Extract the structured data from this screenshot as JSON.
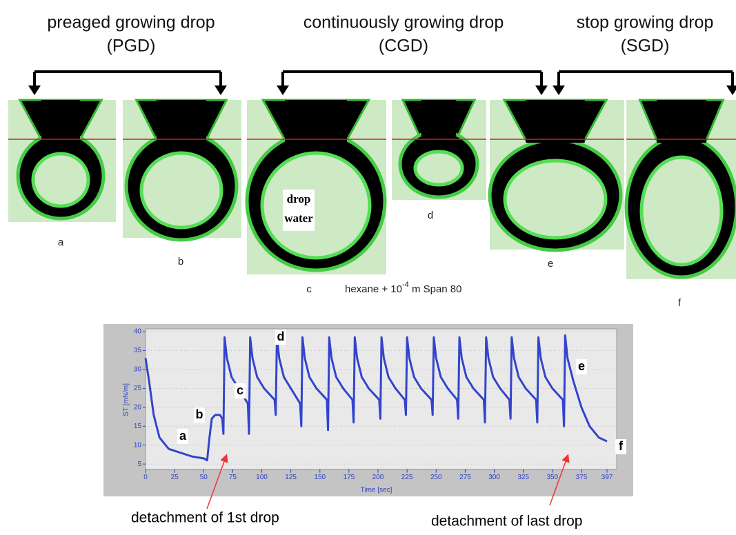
{
  "headers": [
    {
      "title": "preaged growing drop",
      "subtitle": "(PGD)"
    },
    {
      "title": "continuously growing drop",
      "subtitle": "(CGD)"
    },
    {
      "title": "stop growing drop",
      "subtitle": "(SGD)"
    }
  ],
  "drops": [
    {
      "label": "a"
    },
    {
      "label": "b"
    },
    {
      "label": "c"
    },
    {
      "label": "d"
    },
    {
      "label": "e"
    },
    {
      "label": "f"
    }
  ],
  "drop_text": [
    "drop",
    "water"
  ],
  "caption": {
    "before": "hexane + 10",
    "sup": "-4",
    "after": " m Span 80"
  },
  "chart_data": {
    "type": "line",
    "x_label": "Time [sec]",
    "y_label": "ST [mN/m]",
    "x": [
      0,
      3,
      7,
      12,
      20,
      30,
      40,
      50,
      53,
      55,
      57,
      60,
      64,
      66,
      67,
      68,
      70,
      74,
      80,
      88,
      89,
      90,
      92,
      96,
      102,
      111,
      112,
      113,
      115,
      119,
      125,
      133,
      134,
      135,
      137,
      141,
      147,
      156,
      157,
      158,
      160,
      164,
      170,
      178,
      179,
      180,
      182,
      186,
      192,
      201,
      202,
      203,
      205,
      209,
      215,
      223,
      224,
      225,
      227,
      231,
      237,
      246,
      247,
      248,
      250,
      254,
      260,
      268,
      269,
      270,
      272,
      276,
      282,
      291,
      292,
      293,
      295,
      299,
      305,
      313,
      314,
      315,
      317,
      321,
      327,
      336,
      337,
      338,
      340,
      344,
      350,
      359,
      360,
      361,
      363,
      368,
      375,
      382,
      390,
      397
    ],
    "series": [
      {
        "color": "#3344cc",
        "values": [
          33,
          27,
          18,
          12,
          9,
          8,
          7,
          6.5,
          6,
          12,
          17,
          18,
          18,
          17,
          13,
          38.5,
          33,
          28,
          25,
          21,
          13,
          38.5,
          33,
          28,
          25,
          22,
          18,
          38.5,
          33,
          28,
          25,
          21,
          15,
          38.5,
          33,
          28,
          25,
          22,
          14,
          38.5,
          33,
          28,
          25,
          22,
          16,
          38.5,
          33,
          28,
          25,
          22,
          17,
          38.5,
          33,
          28,
          25,
          22,
          18,
          38.5,
          33,
          28,
          25,
          22,
          18,
          38.5,
          33,
          28,
          25,
          22,
          17,
          38.5,
          33,
          28,
          25,
          22,
          16,
          38.5,
          33,
          28,
          25,
          22,
          17,
          38.5,
          33,
          28,
          25,
          22,
          16,
          38.5,
          33,
          28,
          25,
          22,
          15,
          39,
          33,
          27,
          20,
          15,
          12,
          11
        ]
      }
    ],
    "xlim": [
      0,
      397
    ],
    "ylim": [
      4,
      40
    ],
    "xticks": [
      0,
      25,
      50,
      75,
      100,
      125,
      150,
      175,
      200,
      225,
      250,
      275,
      300,
      325,
      350,
      375,
      397
    ],
    "yticks": [
      5,
      10,
      15,
      20,
      25,
      30,
      35,
      40
    ],
    "grid": true,
    "annotations": [
      "a",
      "b",
      "c",
      "d",
      "e",
      "f",
      "detachment of 1st drop",
      "detachment of last drop"
    ]
  }
}
